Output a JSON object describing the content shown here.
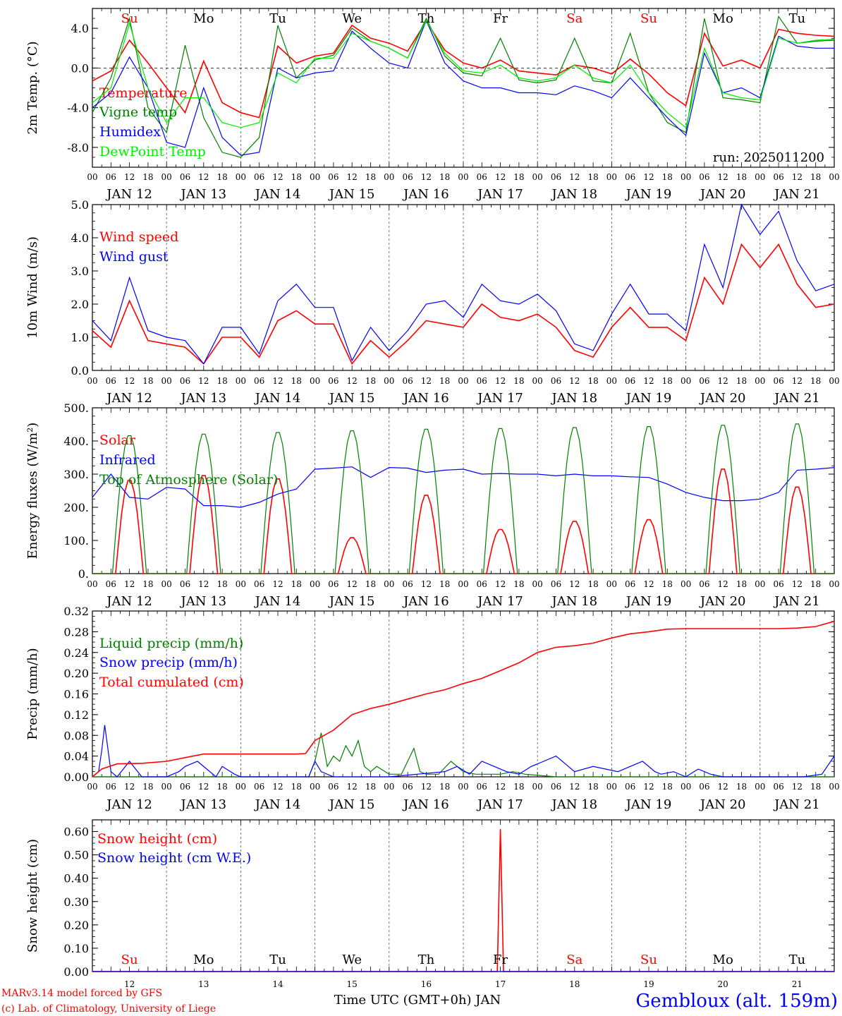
{
  "colors": {
    "red": "#ff0000",
    "green": "#008000",
    "blue": "#0000ff",
    "lime": "#00ee00",
    "axis": "#000000",
    "grid": "#555555"
  },
  "days": {
    "dates": [
      "JAN 12",
      "JAN 13",
      "JAN 14",
      "JAN 15",
      "JAN 16",
      "JAN 17",
      "JAN 18",
      "JAN 19",
      "JAN 20",
      "JAN 21"
    ],
    "weekdays": [
      "Su",
      "Mo",
      "Tu",
      "We",
      "Th",
      "Fr",
      "Sa",
      "Su",
      "Mo",
      "Tu"
    ],
    "weekday_colors": [
      "#ff0000",
      "#000000",
      "#000000",
      "#000000",
      "#000000",
      "#000000",
      "#ff0000",
      "#ff0000",
      "#000000",
      "#000000"
    ],
    "numbers": [
      "12",
      "13",
      "14",
      "15",
      "16",
      "17",
      "18",
      "19",
      "20",
      "21"
    ],
    "hour_ticks": [
      "00",
      "06",
      "12",
      "18"
    ],
    "final_tick": "00"
  },
  "footer": {
    "model_line1": "MARv3.14 model forced by GFS",
    "model_line2": "(c) Lab. of Climatology, University of Liege",
    "axis_title": "Time UTC (GMT+0h) JAN",
    "station": "Gembloux (alt. 159m)"
  },
  "chart_data": [
    {
      "type": "line",
      "id": "temp",
      "ylabel": "2m Temp. (°C)",
      "ylim": [
        -10,
        6
      ],
      "yticks": [
        {
          "v": 4,
          "label": "4.0"
        },
        {
          "v": 0,
          "label": "0.0"
        },
        {
          "v": -4,
          "label": "-4.0"
        },
        {
          "v": -8,
          "label": "-8.0"
        }
      ],
      "zero_line": true,
      "annotation": "run: 2025011200",
      "x_hours": [
        0,
        6,
        12,
        18,
        24,
        30,
        36,
        42,
        48,
        54,
        60,
        66,
        72,
        78,
        84,
        90,
        96,
        102,
        108,
        114,
        120,
        126,
        132,
        138,
        144,
        150,
        156,
        162,
        168,
        174,
        180,
        186,
        192,
        198,
        204,
        210,
        216,
        222,
        228,
        234,
        240
      ],
      "series": [
        {
          "name": "Temperature",
          "color": "#ff0000",
          "values": [
            -1.3,
            -0.3,
            2.8,
            0.5,
            -2.0,
            -4.5,
            0.7,
            -3.5,
            -4.5,
            -5.0,
            2.2,
            0.5,
            1.2,
            1.5,
            4.3,
            3.0,
            2.5,
            1.7,
            4.7,
            1.8,
            0.5,
            0.0,
            0.8,
            -0.3,
            -0.5,
            -0.7,
            0.3,
            0.0,
            -0.6,
            0.9,
            -0.6,
            -2.5,
            -3.8,
            3.5,
            0.2,
            0.8,
            0.0,
            3.9,
            3.5,
            3.3,
            3.2
          ]
        },
        {
          "name": "Vigne temp",
          "color": "#008000",
          "values": [
            -4.5,
            -1.0,
            5.0,
            -4.0,
            -6.5,
            2.3,
            -5.0,
            -8.5,
            -9.0,
            -7.0,
            4.3,
            -1.0,
            0.8,
            1.3,
            4.0,
            2.7,
            2.0,
            1.0,
            5.0,
            1.2,
            -0.5,
            -0.8,
            3.0,
            -1.2,
            -1.5,
            -1.2,
            3.0,
            -1.3,
            -1.5,
            3.5,
            -2.5,
            -5.5,
            -6.5,
            5.0,
            -3.0,
            -3.2,
            -3.5,
            5.2,
            2.5,
            2.7,
            2.8
          ]
        },
        {
          "name": "Humidex",
          "color": "#0000ff",
          "values": [
            -4.0,
            -2.5,
            1.1,
            -2.0,
            -7.5,
            -8.0,
            -2.0,
            -7.0,
            -8.8,
            -8.5,
            0.0,
            -1.0,
            -0.5,
            -0.3,
            3.7,
            2.0,
            0.5,
            0.0,
            4.8,
            0.5,
            -1.3,
            -2.0,
            -2.0,
            -2.5,
            -2.5,
            -2.7,
            -1.8,
            -2.3,
            -3.0,
            -1.0,
            -3.0,
            -5.0,
            -6.8,
            1.5,
            -2.5,
            -2.0,
            -3.0,
            3.2,
            2.2,
            2.0,
            2.0
          ]
        },
        {
          "name": "DewPoint Temp",
          "color": "#00ee00",
          "values": [
            -3.5,
            -2.0,
            4.5,
            -2.0,
            -5.5,
            -3.0,
            -3.0,
            -5.5,
            -6.0,
            -5.5,
            -0.5,
            -1.5,
            1.0,
            1.0,
            3.5,
            2.7,
            2.0,
            1.0,
            4.8,
            1.5,
            -0.3,
            -0.5,
            0.3,
            -1.0,
            -1.3,
            -1.0,
            0.3,
            -1.0,
            -1.5,
            0.3,
            -2.5,
            -4.5,
            -6.0,
            2.0,
            -2.5,
            -3.0,
            -3.2,
            3.0,
            2.5,
            2.8,
            2.9
          ]
        }
      ]
    },
    {
      "type": "line",
      "id": "wind",
      "ylabel": "10m Wind (m/s)",
      "ylim": [
        0,
        5
      ],
      "yticks": [
        {
          "v": 0,
          "label": "0.0"
        },
        {
          "v": 1,
          "label": "1.0"
        },
        {
          "v": 2,
          "label": "2.0"
        },
        {
          "v": 3,
          "label": "3.0"
        },
        {
          "v": 4,
          "label": "4.0"
        },
        {
          "v": 5,
          "label": "5.0"
        }
      ],
      "x_hours": [
        0,
        6,
        12,
        18,
        24,
        30,
        36,
        42,
        48,
        54,
        60,
        66,
        72,
        78,
        84,
        90,
        96,
        102,
        108,
        114,
        120,
        126,
        132,
        138,
        144,
        150,
        156,
        162,
        168,
        174,
        180,
        186,
        192,
        198,
        204,
        210,
        216,
        222,
        228,
        234,
        240
      ],
      "series": [
        {
          "name": "Wind speed",
          "color": "#ff0000",
          "values": [
            1.2,
            0.7,
            2.1,
            0.9,
            0.8,
            0.7,
            0.2,
            1.0,
            1.0,
            0.4,
            1.5,
            1.8,
            1.4,
            1.4,
            0.2,
            0.9,
            0.4,
            0.9,
            1.5,
            1.4,
            1.3,
            2.0,
            1.6,
            1.5,
            1.7,
            1.3,
            0.6,
            0.4,
            1.3,
            1.9,
            1.3,
            1.3,
            0.9,
            2.8,
            2.0,
            3.8,
            3.1,
            3.8,
            2.6,
            1.9,
            2.0
          ]
        },
        {
          "name": "Wind gust",
          "color": "#0000ff",
          "values": [
            1.5,
            0.9,
            2.8,
            1.2,
            1.0,
            0.9,
            0.2,
            1.3,
            1.3,
            0.5,
            2.1,
            2.6,
            1.9,
            1.9,
            0.3,
            1.3,
            0.6,
            1.2,
            2.0,
            2.1,
            1.6,
            2.6,
            2.1,
            2.0,
            2.3,
            1.8,
            0.8,
            0.6,
            1.7,
            2.6,
            1.7,
            1.7,
            1.2,
            3.8,
            2.5,
            5.0,
            4.1,
            4.8,
            3.3,
            2.4,
            2.6
          ]
        }
      ]
    },
    {
      "type": "line",
      "id": "energy",
      "ylabel": "Energy fluxes (W/m²)",
      "ylim": [
        0,
        500
      ],
      "yticks": [
        {
          "v": 0,
          "label": "0."
        },
        {
          "v": 100,
          "label": "100."
        },
        {
          "v": 200,
          "label": "200."
        },
        {
          "v": 300,
          "label": "300."
        },
        {
          "v": 400,
          "label": "400."
        },
        {
          "v": 500,
          "label": "500."
        }
      ],
      "series": [
        {
          "name": "Solar",
          "color": "#ff0000",
          "kind": "daily_peaks",
          "peaks": [
            285,
            300,
            290,
            110,
            240,
            135,
            160,
            165,
            320,
            265
          ]
        },
        {
          "name": "Infrared",
          "color": "#0000ff",
          "x_hours": [
            0,
            6,
            12,
            18,
            24,
            30,
            36,
            42,
            48,
            54,
            60,
            66,
            72,
            78,
            84,
            90,
            96,
            102,
            108,
            114,
            120,
            126,
            132,
            138,
            144,
            150,
            156,
            162,
            168,
            174,
            180,
            186,
            192,
            198,
            204,
            210,
            216,
            222,
            228,
            234,
            240
          ],
          "values": [
            230,
            300,
            230,
            225,
            260,
            255,
            205,
            205,
            200,
            215,
            240,
            255,
            315,
            318,
            322,
            290,
            320,
            318,
            305,
            312,
            315,
            300,
            302,
            300,
            300,
            295,
            300,
            295,
            295,
            292,
            290,
            270,
            245,
            230,
            220,
            220,
            225,
            245,
            312,
            315,
            320
          ]
        },
        {
          "name": "Top of Atmosphere (Solar)",
          "color": "#008000",
          "kind": "daily_peaks",
          "peaks": [
            420,
            425,
            430,
            435,
            440,
            442,
            445,
            448,
            452,
            456
          ]
        }
      ]
    },
    {
      "type": "line",
      "id": "precip",
      "ylabel": "Precip (mm/h)",
      "ylim": [
        0,
        0.32
      ],
      "yticks": [
        {
          "v": 0,
          "label": "0.00"
        },
        {
          "v": 0.04,
          "label": "0.04"
        },
        {
          "v": 0.08,
          "label": "0.08"
        },
        {
          "v": 0.12,
          "label": "0.12"
        },
        {
          "v": 0.16,
          "label": "0.16"
        },
        {
          "v": 0.2,
          "label": "0.20"
        },
        {
          "v": 0.24,
          "label": "0.24"
        },
        {
          "v": 0.28,
          "label": "0.28"
        },
        {
          "v": 0.32,
          "label": "0.32"
        }
      ],
      "series": [
        {
          "name": "Liquid precip (mm/h)",
          "color": "#008000",
          "x_hours": [
            0,
            70,
            72,
            74,
            76,
            78,
            80,
            82,
            84,
            86,
            88,
            90,
            92,
            96,
            100,
            102,
            104,
            106,
            108,
            112,
            116,
            120,
            124,
            128,
            132,
            136,
            140,
            150,
            240
          ],
          "values": [
            0,
            0,
            0.03,
            0.085,
            0.02,
            0.04,
            0.03,
            0.06,
            0.04,
            0.07,
            0.02,
            0.01,
            0.02,
            0.005,
            0.005,
            0.03,
            0.055,
            0.01,
            0.005,
            0.005,
            0.03,
            0.01,
            0.005,
            0.005,
            0.005,
            0.01,
            0.005,
            0,
            0
          ]
        },
        {
          "name": "Snow precip (mm/h)",
          "color": "#0000ff",
          "x_hours": [
            0,
            2,
            3,
            4,
            6,
            8,
            12,
            16,
            24,
            26,
            28,
            30,
            34,
            40,
            42,
            46,
            48,
            66,
            70,
            72,
            74,
            78,
            96,
            114,
            118,
            122,
            126,
            130,
            134,
            138,
            142,
            146,
            150,
            156,
            162,
            170,
            174,
            178,
            182,
            184,
            188,
            192,
            196,
            200,
            204,
            230,
            236,
            240
          ],
          "values": [
            0,
            0.01,
            0.05,
            0.1,
            0.01,
            0,
            0.03,
            0,
            0,
            0.005,
            0.01,
            0.02,
            0.03,
            0,
            0.02,
            0.005,
            0,
            0,
            0,
            0.03,
            0.01,
            0,
            0,
            0.01,
            0.02,
            0.005,
            0.03,
            0.02,
            0.01,
            0.005,
            0.02,
            0.03,
            0.04,
            0.01,
            0.02,
            0.01,
            0.02,
            0.03,
            0.01,
            0.005,
            0.01,
            0,
            0.015,
            0.005,
            0,
            0,
            0.005,
            0.04
          ]
        },
        {
          "name": "Total cumulated (cm)",
          "color": "#ff0000",
          "x_hours": [
            0,
            3,
            8,
            16,
            24,
            30,
            36,
            42,
            48,
            60,
            66,
            69,
            72,
            78,
            84,
            90,
            96,
            102,
            108,
            114,
            120,
            126,
            132,
            138,
            144,
            150,
            156,
            162,
            168,
            174,
            180,
            186,
            192,
            198,
            204,
            210,
            216,
            222,
            228,
            234,
            240
          ],
          "values": [
            0,
            0.015,
            0.025,
            0.026,
            0.03,
            0.037,
            0.044,
            0.044,
            0.044,
            0.044,
            0.044,
            0.045,
            0.07,
            0.09,
            0.12,
            0.132,
            0.14,
            0.15,
            0.16,
            0.168,
            0.18,
            0.19,
            0.205,
            0.22,
            0.24,
            0.25,
            0.253,
            0.258,
            0.268,
            0.276,
            0.28,
            0.285,
            0.286,
            0.286,
            0.286,
            0.286,
            0.286,
            0.286,
            0.287,
            0.29,
            0.3
          ]
        }
      ]
    },
    {
      "type": "line",
      "id": "snow",
      "ylabel": "Snow height (cm)",
      "ylim": [
        0,
        0.65
      ],
      "yticks": [
        {
          "v": 0,
          "label": "0.00"
        },
        {
          "v": 0.1,
          "label": "0.10"
        },
        {
          "v": 0.2,
          "label": "0.20"
        },
        {
          "v": 0.3,
          "label": "0.30"
        },
        {
          "v": 0.4,
          "label": "0.40"
        },
        {
          "v": 0.5,
          "label": "0.50"
        },
        {
          "v": 0.6,
          "label": "0.60"
        }
      ],
      "series": [
        {
          "name": "Snow height (cm)",
          "color": "#ff0000",
          "x_hours": [
            0,
            131,
            132,
            133,
            240
          ],
          "values": [
            0,
            0,
            0.61,
            0,
            0
          ]
        },
        {
          "name": "Snow height (cm W.E.)",
          "color": "#0000ff",
          "x_hours": [
            0,
            240
          ],
          "values": [
            0,
            0
          ]
        }
      ]
    }
  ]
}
